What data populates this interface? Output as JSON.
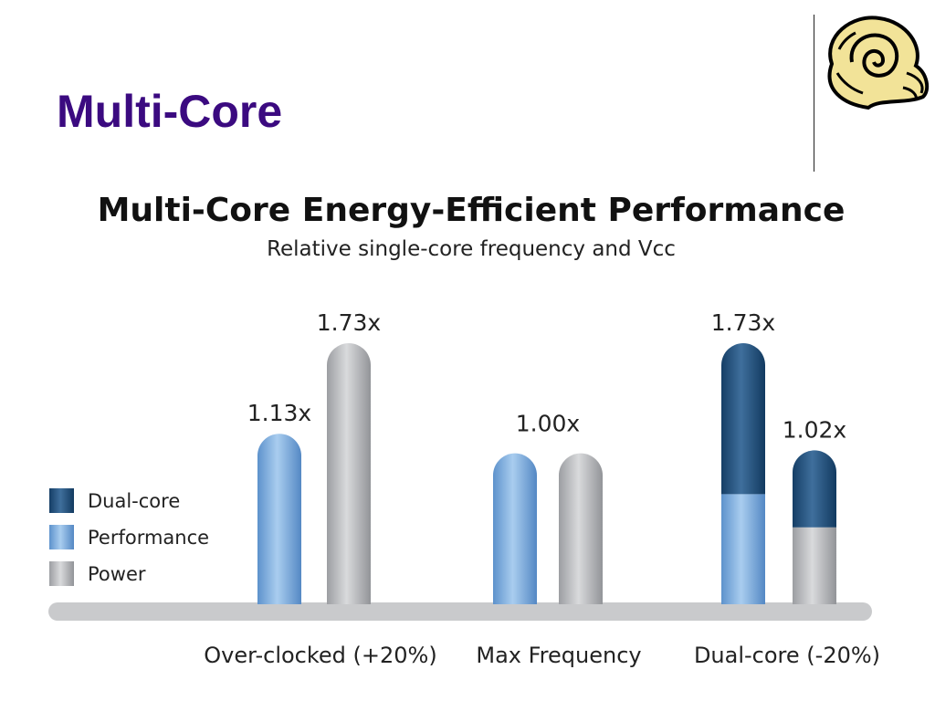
{
  "slide": {
    "title": "Multi-Core"
  },
  "chart_data": {
    "type": "bar",
    "title": "Multi-Core Energy-Efficient Performance",
    "subtitle": "Relative single-core frequency and Vcc",
    "categories": [
      "Over-clocked (+20%)",
      "Max Frequency",
      "Dual-core (-20%)"
    ],
    "series": [
      {
        "name": "Performance",
        "values": [
          1.13,
          1.0,
          0.73
        ]
      },
      {
        "name": "Power",
        "values": [
          1.73,
          1.0,
          0.51
        ]
      },
      {
        "name": "Dual-core",
        "values": [
          0,
          0,
          1.0
        ]
      }
    ],
    "bars": [
      {
        "category": "Over-clocked (+20%)",
        "group": "Performance",
        "total": 1.13,
        "label": "1.13x",
        "segments": [
          {
            "series": "Performance",
            "value": 1.13
          }
        ]
      },
      {
        "category": "Over-clocked (+20%)",
        "group": "Power",
        "total": 1.73,
        "label": "1.73x",
        "segments": [
          {
            "series": "Power",
            "value": 1.73
          }
        ]
      },
      {
        "category": "Max Frequency",
        "group": "Performance",
        "total": 1.0,
        "label": "",
        "segments": [
          {
            "series": "Performance",
            "value": 1.0
          }
        ]
      },
      {
        "category": "Max Frequency",
        "group": "Power",
        "total": 1.0,
        "label": "",
        "segments": [
          {
            "series": "Power",
            "value": 1.0
          }
        ]
      },
      {
        "category": "Dual-core (-20%)",
        "group": "Performance",
        "total": 1.73,
        "label": "1.73x",
        "segments": [
          {
            "series": "Performance",
            "value": 0.73
          },
          {
            "series": "Dual-core",
            "value": 1.0
          }
        ]
      },
      {
        "category": "Dual-core (-20%)",
        "group": "Power",
        "total": 1.02,
        "label": "1.02x",
        "segments": [
          {
            "series": "Power",
            "value": 0.51
          },
          {
            "series": "Dual-core",
            "value": 0.51
          }
        ]
      }
    ],
    "shared_labels": [
      {
        "category": "Max Frequency",
        "label": "1.00x",
        "value": 1.0
      }
    ],
    "legend": {
      "position": "left",
      "entries": [
        "Dual-core",
        "Performance",
        "Power"
      ]
    },
    "colors": {
      "Dual-core": "#1e4f7e",
      "Performance": "#6fa3d8",
      "Power": "#b4b6b9",
      "baseline": "#c9cacc",
      "title": "#3b0a80"
    },
    "ylim": [
      0,
      1.85
    ],
    "grid": false,
    "xlabel": "",
    "ylabel": ""
  }
}
